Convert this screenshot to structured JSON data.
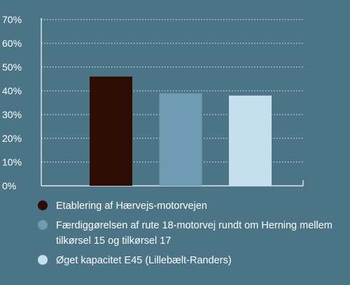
{
  "chart_data": {
    "type": "bar",
    "categories": [
      "Etablering af Hærvejs-motorvejen",
      "Færdiggørelsen af rute 18-motorvej rundt om Herning mellem tilkørsel 15 og tilkørsel 17",
      "Øget kapacitet E45 (Lillebælt-Randers)"
    ],
    "values": [
      46,
      39,
      38
    ],
    "colors": [
      "#2e0c06",
      "#6e9ab2",
      "#c5dfee"
    ],
    "yticks": [
      "0%",
      "10%",
      "20%",
      "30%",
      "40%",
      "50%",
      "60%",
      "70%"
    ],
    "ylim": [
      0,
      70
    ],
    "grid": true,
    "legend_position": "bottom",
    "background": "#4b7487"
  },
  "legend": [
    {
      "label": "Etablering af Hærvejs-motorvejen",
      "color": "#2e0c06"
    },
    {
      "label": "Færdiggørelsen af rute 18-motorvej rundt om Herning mellem tilkørsel 15 og tilkørsel 17",
      "color": "#6e9ab2"
    },
    {
      "label": "Øget kapacitet E45 (Lillebælt-Randers)",
      "color": "#c5dfee"
    }
  ]
}
